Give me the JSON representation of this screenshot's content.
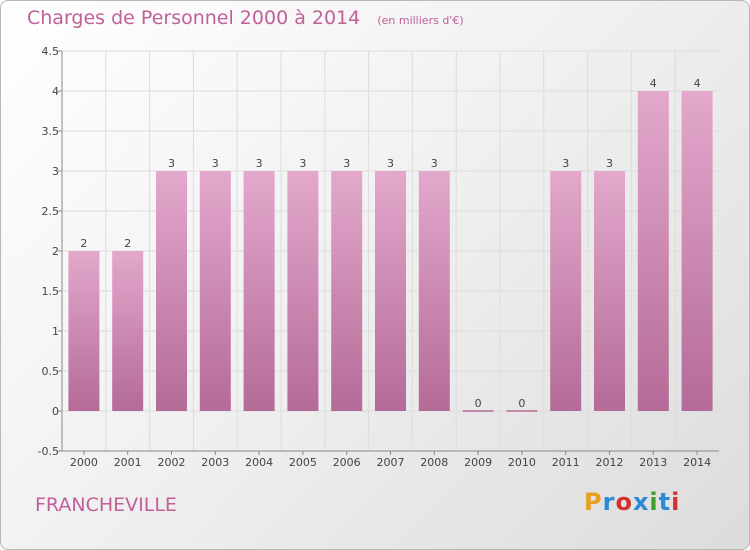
{
  "header": {
    "title": "Charges de Personnel 2000 à 2014",
    "unit_note": "(en milliers d'€)"
  },
  "footer": {
    "commune": "FRANCHEVILLE",
    "brand": "Proxiti",
    "brand_colors": [
      "#e8a020",
      "#2a8ad8",
      "#d43030",
      "#2a8ad8",
      "#3aa030",
      "#2a8ad8",
      "#d43030"
    ]
  },
  "chart_data": {
    "type": "bar",
    "categories": [
      "2000",
      "2001",
      "2002",
      "2003",
      "2004",
      "2005",
      "2006",
      "2007",
      "2008",
      "2009",
      "2010",
      "2011",
      "2012",
      "2013",
      "2014"
    ],
    "values": [
      2,
      2,
      3,
      3,
      3,
      3,
      3,
      3,
      3,
      0,
      0,
      3,
      3,
      4,
      4
    ],
    "data_labels": [
      "2",
      "2",
      "3",
      "3",
      "3",
      "3",
      "3",
      "3",
      "3",
      "0",
      "0",
      "3",
      "3",
      "4",
      "4"
    ],
    "yticks": [
      -0.5,
      0,
      0.5,
      1,
      1.5,
      2,
      2.5,
      3,
      3.5,
      4,
      4.5
    ],
    "ytick_labels": [
      "-0.5",
      "0",
      "0.5",
      "1",
      "1.5",
      "2",
      "2.5",
      "3",
      "3.5",
      "4",
      "4.5"
    ],
    "ylim": [
      -0.5,
      4.5
    ],
    "grid": true,
    "bar_color_top": "#e3a8cc",
    "bar_color_bottom": "#b46b97"
  }
}
